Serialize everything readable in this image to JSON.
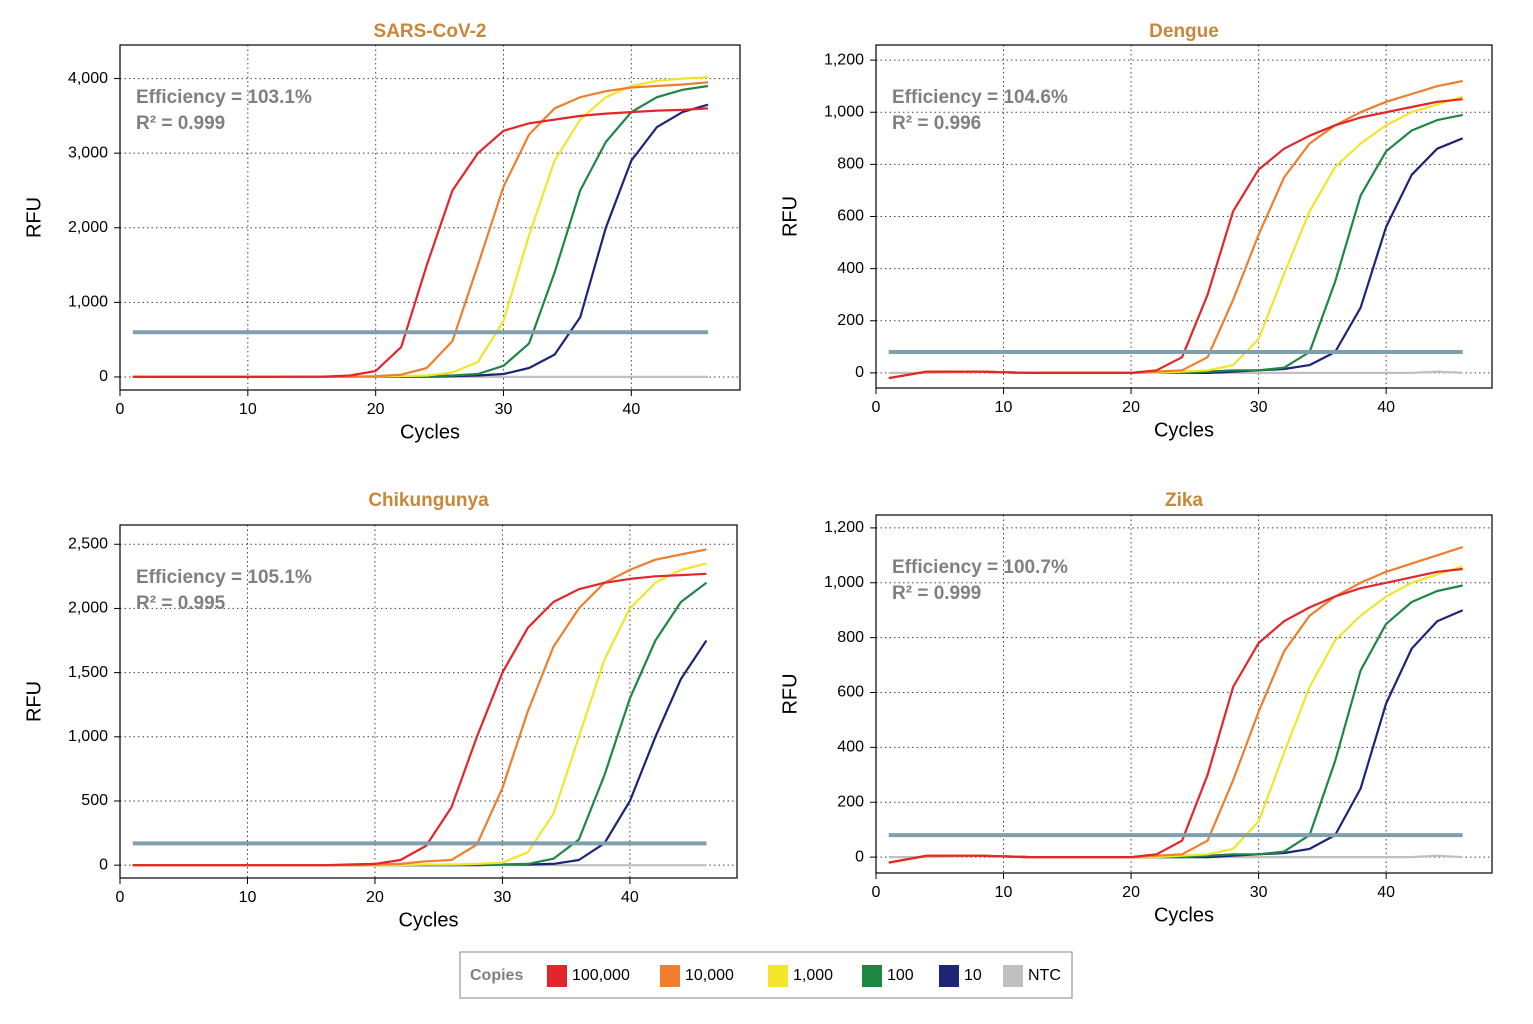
{
  "chart_data": [
    {
      "type": "line",
      "title": "SARS-CoV-2",
      "annotations": [
        "Efficiency = 103.1%",
        "R² = 0.999"
      ],
      "xlabel": "Cycles",
      "ylabel": "RFU",
      "x": [
        1,
        4,
        8,
        12,
        16,
        18,
        20,
        22,
        24,
        26,
        28,
        30,
        32,
        34,
        36,
        38,
        40,
        42,
        44,
        46
      ],
      "xlim": [
        0,
        48.5
      ],
      "xticks": [
        0,
        10,
        20,
        30,
        40
      ],
      "ylim": [
        -175,
        4450
      ],
      "yticks": [
        0,
        {
          "value": 1000,
          "label": "1,000"
        },
        {
          "value": 2000,
          "label": "2,000"
        },
        {
          "value": 3000,
          "label": "3,000"
        },
        {
          "value": 4000,
          "label": "4,000"
        }
      ],
      "threshold": 600,
      "grid": true,
      "series": [
        {
          "name": "100,000",
          "values": [
            0,
            0,
            0,
            0,
            5,
            20,
            80,
            400,
            1500,
            2500,
            3000,
            3300,
            3400,
            3450,
            3500,
            3530,
            3550,
            3570,
            3580,
            3600
          ]
        },
        {
          "name": "10,000",
          "values": [
            0,
            0,
            0,
            0,
            0,
            5,
            10,
            30,
            120,
            480,
            1500,
            2550,
            3250,
            3600,
            3750,
            3830,
            3880,
            3900,
            3920,
            3950
          ]
        },
        {
          "name": "1,000",
          "values": [
            0,
            0,
            0,
            0,
            0,
            0,
            5,
            10,
            20,
            60,
            200,
            750,
            1900,
            2900,
            3450,
            3750,
            3900,
            3970,
            4000,
            4020
          ]
        },
        {
          "name": "100",
          "values": [
            0,
            0,
            0,
            0,
            0,
            0,
            0,
            5,
            10,
            20,
            40,
            150,
            450,
            1400,
            2500,
            3150,
            3550,
            3750,
            3850,
            3900
          ]
        },
        {
          "name": "10",
          "values": [
            0,
            0,
            0,
            0,
            0,
            0,
            0,
            0,
            5,
            10,
            20,
            40,
            120,
            300,
            800,
            2000,
            2900,
            3350,
            3550,
            3650
          ]
        },
        {
          "name": "NTC",
          "values": [
            0,
            0,
            0,
            0,
            0,
            0,
            0,
            0,
            0,
            0,
            0,
            0,
            0,
            0,
            0,
            0,
            0,
            0,
            0,
            0
          ]
        }
      ]
    },
    {
      "type": "line",
      "title": "Dengue",
      "annotations": [
        "Efficiency = 104.6%",
        "R² = 0.996"
      ],
      "xlabel": "Cycles",
      "ylabel": "RFU",
      "x": [
        1,
        4,
        8,
        12,
        16,
        18,
        20,
        22,
        24,
        26,
        28,
        30,
        32,
        34,
        36,
        38,
        40,
        42,
        44,
        46
      ],
      "xlim": [
        0,
        48.3
      ],
      "xticks": [
        0,
        10,
        20,
        30,
        40
      ],
      "ylim": [
        -58,
        1258
      ],
      "yticks": [
        0,
        200,
        400,
        600,
        800,
        {
          "value": 1000,
          "label": "1,000"
        },
        {
          "value": 1200,
          "label": "1,200"
        }
      ],
      "threshold": 80,
      "grid": true,
      "series": [
        {
          "name": "100,000",
          "values": [
            -20,
            5,
            5,
            0,
            0,
            0,
            0,
            10,
            60,
            300,
            620,
            780,
            860,
            910,
            950,
            980,
            1000,
            1020,
            1040,
            1050
          ]
        },
        {
          "name": "10,000",
          "values": [
            -20,
            5,
            5,
            0,
            0,
            0,
            0,
            5,
            10,
            60,
            280,
            530,
            750,
            880,
            950,
            1000,
            1040,
            1070,
            1100,
            1120
          ]
        },
        {
          "name": "1,000",
          "values": [
            -20,
            5,
            5,
            0,
            0,
            0,
            0,
            0,
            5,
            10,
            30,
            130,
            380,
            620,
            790,
            880,
            950,
            1000,
            1030,
            1060
          ]
        },
        {
          "name": "100",
          "values": [
            -20,
            5,
            5,
            0,
            0,
            0,
            0,
            0,
            0,
            5,
            10,
            10,
            20,
            80,
            350,
            680,
            850,
            930,
            970,
            990
          ]
        },
        {
          "name": "10",
          "values": [
            -20,
            5,
            5,
            0,
            0,
            0,
            0,
            0,
            0,
            0,
            5,
            10,
            15,
            30,
            80,
            250,
            560,
            760,
            860,
            900
          ]
        },
        {
          "name": "NTC",
          "values": [
            0,
            0,
            5,
            0,
            0,
            0,
            0,
            0,
            0,
            0,
            0,
            0,
            0,
            0,
            0,
            0,
            0,
            0,
            5,
            0
          ]
        }
      ]
    },
    {
      "type": "line",
      "title": "Chikungunya",
      "annotations": [
        "Efficiency = 105.1%",
        "R² = 0.995"
      ],
      "xlabel": "Cycles",
      "ylabel": "RFU",
      "x": [
        1,
        4,
        8,
        12,
        16,
        18,
        20,
        22,
        24,
        26,
        28,
        30,
        32,
        34,
        36,
        38,
        40,
        42,
        44,
        46
      ],
      "xlim": [
        0,
        48.4
      ],
      "xticks": [
        0,
        10,
        20,
        30,
        40
      ],
      "ylim": [
        -100,
        2650
      ],
      "yticks": [
        0,
        500,
        {
          "value": 1000,
          "label": "1,000"
        },
        {
          "value": 1500,
          "label": "1,500"
        },
        {
          "value": 2000,
          "label": "2,000"
        },
        {
          "value": 2500,
          "label": "2,500"
        }
      ],
      "threshold": 170,
      "grid": true,
      "series": [
        {
          "name": "100,000",
          "values": [
            0,
            0,
            0,
            0,
            0,
            5,
            10,
            40,
            150,
            450,
            1000,
            1500,
            1850,
            2050,
            2150,
            2200,
            2230,
            2250,
            2260,
            2270
          ]
        },
        {
          "name": "10,000",
          "values": [
            0,
            0,
            0,
            0,
            0,
            0,
            5,
            10,
            30,
            40,
            160,
            600,
            1200,
            1700,
            2000,
            2200,
            2300,
            2380,
            2420,
            2460
          ]
        },
        {
          "name": "1,000",
          "values": [
            0,
            0,
            0,
            0,
            0,
            0,
            0,
            0,
            5,
            5,
            10,
            20,
            100,
            400,
            1000,
            1600,
            2000,
            2200,
            2300,
            2350
          ]
        },
        {
          "name": "100",
          "values": [
            0,
            0,
            0,
            0,
            0,
            0,
            0,
            0,
            0,
            0,
            5,
            5,
            10,
            50,
            200,
            700,
            1300,
            1750,
            2050,
            2200
          ]
        },
        {
          "name": "10",
          "values": [
            0,
            0,
            0,
            0,
            0,
            0,
            0,
            0,
            0,
            0,
            0,
            5,
            5,
            10,
            40,
            170,
            500,
            1000,
            1450,
            1750
          ]
        },
        {
          "name": "NTC",
          "values": [
            0,
            0,
            0,
            0,
            0,
            0,
            0,
            0,
            0,
            0,
            0,
            0,
            0,
            0,
            0,
            0,
            0,
            0,
            0,
            0
          ]
        }
      ]
    },
    {
      "type": "line",
      "title": "Zika",
      "annotations": [
        "Efficiency = 100.7%",
        "R² = 0.999"
      ],
      "xlabel": "Cycles",
      "ylabel": "RFU",
      "x": [
        1,
        4,
        8,
        12,
        16,
        18,
        20,
        22,
        24,
        26,
        28,
        30,
        32,
        34,
        36,
        38,
        40,
        42,
        44,
        46
      ],
      "xlim": [
        0,
        48.3
      ],
      "xticks": [
        0,
        10,
        20,
        30,
        40
      ],
      "ylim": [
        -58,
        1247
      ],
      "yticks": [
        0,
        200,
        400,
        600,
        800,
        {
          "value": 1000,
          "label": "1,000"
        },
        {
          "value": 1200,
          "label": "1,200"
        }
      ],
      "threshold": 80,
      "grid": true,
      "series": [
        {
          "name": "100,000",
          "values": [
            -20,
            5,
            5,
            0,
            0,
            0,
            0,
            10,
            60,
            300,
            620,
            780,
            860,
            910,
            950,
            980,
            1000,
            1020,
            1040,
            1050
          ]
        },
        {
          "name": "10,000",
          "values": [
            -20,
            5,
            5,
            0,
            0,
            0,
            0,
            5,
            10,
            60,
            280,
            530,
            750,
            880,
            950,
            1000,
            1040,
            1070,
            1100,
            1130
          ]
        },
        {
          "name": "1,000",
          "values": [
            -20,
            5,
            5,
            0,
            0,
            0,
            0,
            0,
            5,
            10,
            30,
            130,
            380,
            620,
            790,
            880,
            950,
            1000,
            1030,
            1060
          ]
        },
        {
          "name": "100",
          "values": [
            -20,
            5,
            5,
            0,
            0,
            0,
            0,
            0,
            0,
            5,
            10,
            10,
            20,
            80,
            350,
            680,
            850,
            930,
            970,
            990
          ]
        },
        {
          "name": "10",
          "values": [
            -20,
            5,
            5,
            0,
            0,
            0,
            0,
            0,
            0,
            0,
            5,
            10,
            15,
            30,
            80,
            250,
            560,
            760,
            860,
            900
          ]
        },
        {
          "name": "NTC",
          "values": [
            0,
            0,
            5,
            0,
            0,
            0,
            0,
            0,
            0,
            0,
            0,
            0,
            0,
            0,
            0,
            0,
            0,
            0,
            5,
            0
          ]
        }
      ]
    }
  ],
  "legend": {
    "title": "Copies",
    "items": [
      {
        "name": "100,000",
        "color": "#e3262b"
      },
      {
        "name": "10,000",
        "color": "#ef7e2d"
      },
      {
        "name": "1,000",
        "color": "#f2e52a"
      },
      {
        "name": "100",
        "color": "#1e8744"
      },
      {
        "name": "10",
        "color": "#1d2577"
      },
      {
        "name": "NTC",
        "color": "#c0c0c0"
      }
    ]
  }
}
